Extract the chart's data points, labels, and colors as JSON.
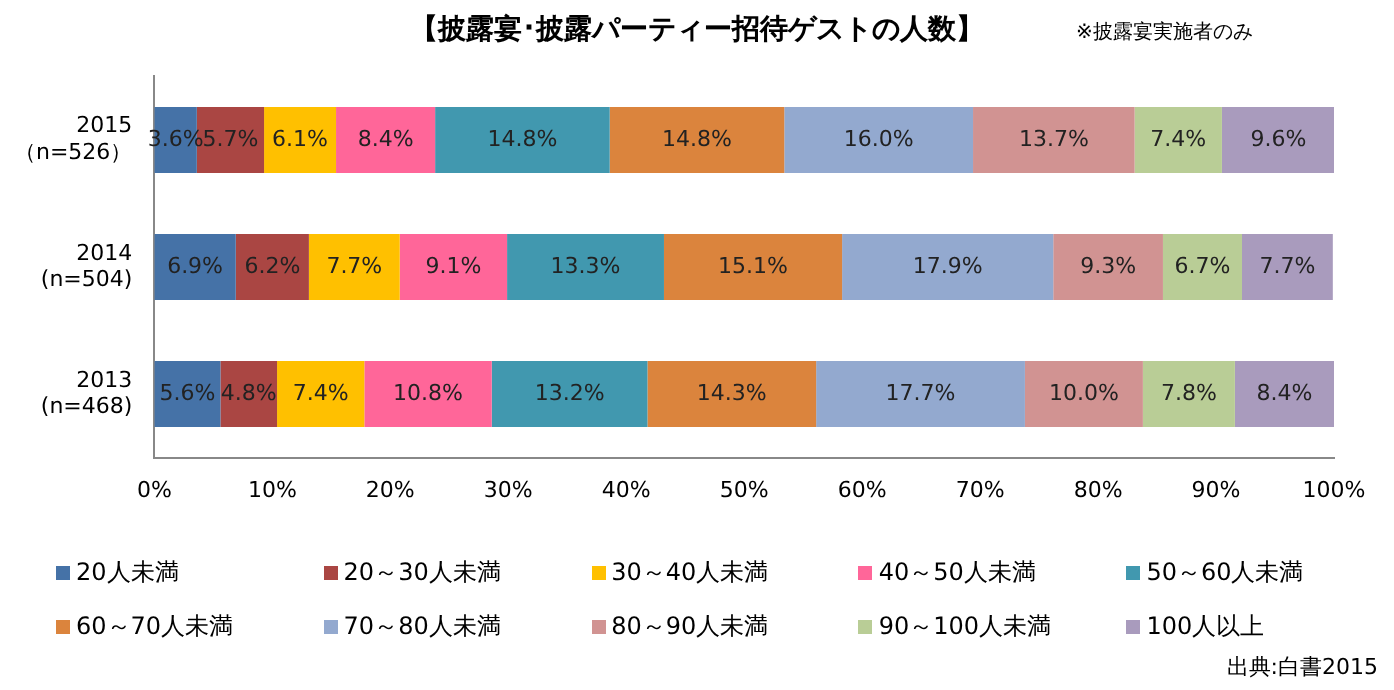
{
  "chart_data": {
    "type": "bar",
    "orientation": "horizontal",
    "stacked": true,
    "title": "【披露宴･披露パーティー招待ゲストの人数】",
    "annotations": [
      "※披露宴実施者のみ",
      "出典:白書2015"
    ],
    "categories": [
      "2015\n（n=526）",
      "2014\n(n=504)",
      "2013\n(n=468)"
    ],
    "series": [
      {
        "name": "20人未満",
        "color": "#4572a7",
        "values": [
          3.6,
          6.9,
          5.6
        ],
        "value_labels": [
          "3.6%",
          "6.9%",
          "5.6%"
        ]
      },
      {
        "name": "20～30人未満",
        "color": "#aa4643",
        "values": [
          5.7,
          6.2,
          4.8
        ],
        "value_labels": [
          "5.7%",
          "6.2%",
          "4.8%"
        ]
      },
      {
        "name": "30～40人未満",
        "color": "#ffc000",
        "values": [
          6.1,
          7.7,
          7.4
        ],
        "value_labels": [
          "6.1%",
          "7.7%",
          "7.4%"
        ]
      },
      {
        "name": "40～50人未満",
        "color": "#ff6699",
        "values": [
          8.4,
          9.1,
          10.8
        ],
        "value_labels": [
          "8.4%",
          "9.1%",
          "10.8%"
        ]
      },
      {
        "name": "50～60人未満",
        "color": "#4198af",
        "values": [
          14.8,
          13.3,
          13.2
        ],
        "value_labels": [
          "14.8%",
          "13.3%",
          "13.2%"
        ]
      },
      {
        "name": "60～70人未満",
        "color": "#db843d",
        "values": [
          14.8,
          15.1,
          14.3
        ],
        "value_labels": [
          "14.8%",
          "15.1%",
          "14.3%"
        ]
      },
      {
        "name": "70～80人未満",
        "color": "#93a9cf",
        "values": [
          16.0,
          17.9,
          17.7
        ],
        "value_labels": [
          "16.0%",
          "17.9%",
          "17.7%"
        ]
      },
      {
        "name": "80～90人未満",
        "color": "#d19392",
        "values": [
          13.7,
          9.3,
          10.0
        ],
        "value_labels": [
          "13.7%",
          "9.3%",
          "10.0%"
        ]
      },
      {
        "name": "90～100人未満",
        "color": "#b9cd96",
        "values": [
          7.4,
          6.7,
          7.8
        ],
        "value_labels": [
          "7.4%",
          "6.7%",
          "7.8%"
        ]
      },
      {
        "name": "100人以上",
        "color": "#a99bbd",
        "values": [
          9.6,
          7.7,
          8.4
        ],
        "value_labels": [
          "9.6%",
          "7.7%",
          "8.4%"
        ]
      }
    ],
    "xlim": [
      0,
      100
    ],
    "xticks": [
      {
        "value": 0,
        "label": "0%"
      },
      {
        "value": 10,
        "label": "10%"
      },
      {
        "value": 20,
        "label": "20%"
      },
      {
        "value": 30,
        "label": "30%"
      },
      {
        "value": 40,
        "label": "40%"
      },
      {
        "value": 50,
        "label": "50%"
      },
      {
        "value": 60,
        "label": "60%"
      },
      {
        "value": 70,
        "label": "70%"
      },
      {
        "value": 80,
        "label": "80%"
      },
      {
        "value": 90,
        "label": "90%"
      },
      {
        "value": 100,
        "label": "100%"
      }
    ],
    "legend": "bottom"
  }
}
